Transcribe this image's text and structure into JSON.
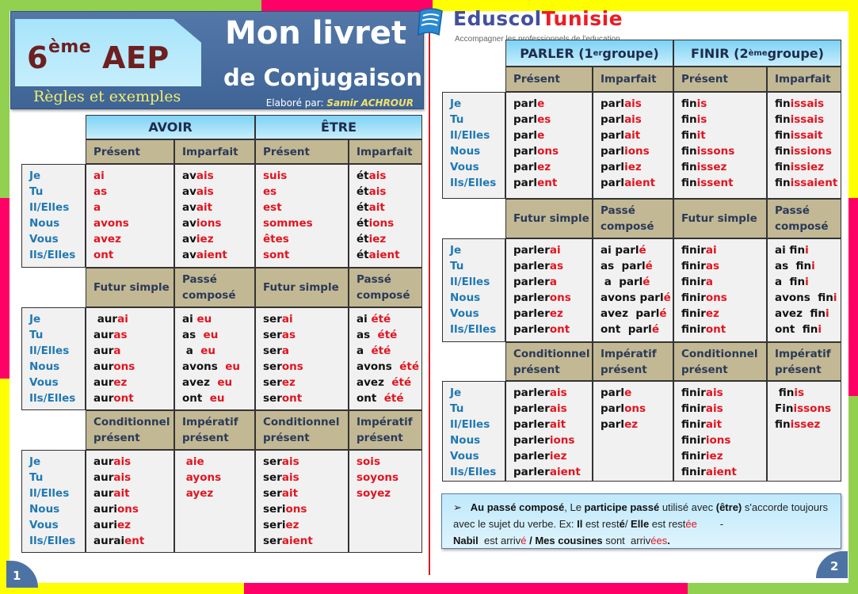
{
  "header": {
    "grade_num": "6",
    "grade_sup": "ème",
    "grade_label": "AEP",
    "subtitle": "Règles et exemples",
    "title_line1": "Mon livret",
    "title_line2": "de Conjugaison",
    "author_prefix": "Elaboré par: ",
    "author_name": "Samir ACHROUR"
  },
  "logo": {
    "name_part1": "Eduscol",
    "name_part2": "Tunisie",
    "tagline": "Accompagner les professionnels de l'education"
  },
  "colors": {
    "frame_green": "#92d050",
    "frame_pink": "#ff0066",
    "frame_yellow": "#ffff00",
    "banner_blue": "#4a6fa2",
    "verb_header_blue": "#8fd8f7",
    "tense_header_tan": "#c2b894",
    "ending_red": "#e2141f",
    "pronoun_blue": "#1f78b4"
  },
  "pronouns": [
    "Je",
    "Tu",
    "Il/Elles",
    "Nous",
    "Vous",
    "Ils/Elles"
  ],
  "page1": {
    "page_number": "1",
    "verbs": [
      "AVOIR",
      "ÊTRE"
    ],
    "blocks": [
      {
        "tenses": [
          "Présent",
          "Imparfait",
          "Présent",
          "Imparfait"
        ],
        "columns": [
          [
            [
              "",
              "ai"
            ],
            [
              "",
              "as"
            ],
            [
              "",
              "a"
            ],
            [
              "",
              "avons"
            ],
            [
              "",
              "avez"
            ],
            [
              "",
              "ont"
            ]
          ],
          [
            [
              "av",
              "ais"
            ],
            [
              "av",
              "ais"
            ],
            [
              "av",
              "ait"
            ],
            [
              "av",
              "ions"
            ],
            [
              "av",
              "iez"
            ],
            [
              "av",
              "aient"
            ]
          ],
          [
            [
              "",
              "suis"
            ],
            [
              "",
              "es"
            ],
            [
              "",
              "est"
            ],
            [
              "",
              "sommes"
            ],
            [
              "",
              "êtes"
            ],
            [
              "",
              "sont"
            ]
          ],
          [
            [
              "ét",
              "ais"
            ],
            [
              "ét",
              "ais"
            ],
            [
              "ét",
              "ait"
            ],
            [
              "ét",
              "ions"
            ],
            [
              "ét",
              "iez"
            ],
            [
              "ét",
              "aient"
            ]
          ]
        ]
      },
      {
        "tenses": [
          "Futur simple",
          "Passé composé",
          "Futur simple",
          "Passé composé"
        ],
        "columns": [
          [
            [
              " aur",
              "ai"
            ],
            [
              "aur",
              "as"
            ],
            [
              "aur",
              "a"
            ],
            [
              "aur",
              "ons"
            ],
            [
              "aur",
              "ez"
            ],
            [
              "aur",
              "ont"
            ]
          ],
          [
            [
              "ai ",
              "eu"
            ],
            [
              "as  ",
              "eu"
            ],
            [
              " a  ",
              "eu"
            ],
            [
              "avons  ",
              "eu"
            ],
            [
              "avez  ",
              "eu"
            ],
            [
              "ont  ",
              "eu"
            ]
          ],
          [
            [
              "ser",
              "ai"
            ],
            [
              "ser",
              "as"
            ],
            [
              "ser",
              "a"
            ],
            [
              "ser",
              "ons"
            ],
            [
              "ser",
              "ez"
            ],
            [
              "ser",
              "ont"
            ]
          ],
          [
            [
              "ai ",
              "été"
            ],
            [
              "as  ",
              "été"
            ],
            [
              "a  ",
              "été"
            ],
            [
              "avons  ",
              "été"
            ],
            [
              "avez  ",
              "été"
            ],
            [
              "ont  ",
              "été"
            ]
          ]
        ]
      },
      {
        "tenses": [
          "Conditionnel présent",
          "Impératif présent",
          "Conditionnel présent",
          "Impératif présent"
        ],
        "columns": [
          [
            [
              "aur",
              "ais"
            ],
            [
              "aur",
              "ais"
            ],
            [
              "aur",
              "ait"
            ],
            [
              "auri",
              "ons"
            ],
            [
              "auri",
              "ez"
            ],
            [
              "aurai",
              "ent"
            ]
          ],
          [
            [
              " ",
              "aie"
            ],
            [
              " ",
              "ayons"
            ],
            [
              " ",
              "ayez"
            ]
          ],
          [
            [
              "ser",
              "ais"
            ],
            [
              "ser",
              "ais"
            ],
            [
              "ser",
              "ait"
            ],
            [
              "seri",
              "ons"
            ],
            [
              "seri",
              "ez"
            ],
            [
              "ser",
              "aient"
            ]
          ],
          [
            [
              "",
              "sois"
            ],
            [
              "",
              "soyons"
            ],
            [
              "",
              "soyez"
            ]
          ]
        ]
      }
    ]
  },
  "page2": {
    "page_number": "2",
    "verbs": [
      "PARLER (1",
      "er",
      " groupe)",
      "FINIR (2",
      "ème",
      " groupe)"
    ],
    "blocks": [
      {
        "tenses": [
          "Présent",
          "Imparfait",
          "Présent",
          "Imparfait"
        ],
        "columns": [
          [
            [
              "parl",
              "e"
            ],
            [
              "parl",
              "es"
            ],
            [
              "parl",
              "e"
            ],
            [
              "parl",
              "ons"
            ],
            [
              "parl",
              "ez"
            ],
            [
              "parl",
              "ent"
            ]
          ],
          [
            [
              "parl",
              "ais"
            ],
            [
              "parl",
              "ais"
            ],
            [
              "parl",
              "ait"
            ],
            [
              "parl",
              "ions"
            ],
            [
              "parl",
              "iez"
            ],
            [
              "parl",
              "aient"
            ]
          ],
          [
            [
              "fin",
              "is"
            ],
            [
              "fin",
              "is"
            ],
            [
              "fin",
              "it"
            ],
            [
              "fin",
              "issons"
            ],
            [
              "fin",
              "issez"
            ],
            [
              "fin",
              "issent"
            ]
          ],
          [
            [
              "fin",
              "issais"
            ],
            [
              "fin",
              "issais"
            ],
            [
              "fin",
              "issait"
            ],
            [
              "fin",
              "issions"
            ],
            [
              "fin",
              "issiez"
            ],
            [
              "fin",
              "issaient"
            ]
          ]
        ]
      },
      {
        "tenses": [
          "Futur simple",
          "Passé composé",
          "Futur simple",
          "Passé composé"
        ],
        "columns": [
          [
            [
              "parler",
              "ai"
            ],
            [
              "parler",
              "as"
            ],
            [
              "parler",
              "a"
            ],
            [
              "parler",
              "ons"
            ],
            [
              "parler",
              "ez"
            ],
            [
              "parler",
              "ont"
            ]
          ],
          [
            [
              "ai parl",
              "é"
            ],
            [
              "as  parl",
              "é"
            ],
            [
              " a  parl",
              "é"
            ],
            [
              "avons parl",
              "é"
            ],
            [
              "avez  parl",
              "é"
            ],
            [
              "ont  parl",
              "é"
            ]
          ],
          [
            [
              "finir",
              "ai"
            ],
            [
              "finir",
              "as"
            ],
            [
              "finir",
              "a"
            ],
            [
              "finir",
              "ons"
            ],
            [
              "finir",
              "ez"
            ],
            [
              "finir",
              "ont"
            ]
          ],
          [
            [
              "ai fin",
              "i"
            ],
            [
              "as  fin",
              "i"
            ],
            [
              "a  fin",
              "i"
            ],
            [
              "avons  fin",
              "i"
            ],
            [
              "avez  fin",
              "i"
            ],
            [
              "ont  fin",
              "i"
            ]
          ]
        ]
      },
      {
        "tenses": [
          "Conditionnel présent",
          "Impératif présent",
          "Conditionnel présent",
          "Impératif présent"
        ],
        "columns": [
          [
            [
              "parler",
              "ais"
            ],
            [
              "parler",
              "ais"
            ],
            [
              "parler",
              "ait"
            ],
            [
              "parler",
              "ions"
            ],
            [
              "parler",
              "iez"
            ],
            [
              "parler",
              "aient"
            ]
          ],
          [
            [
              "parl",
              "e"
            ],
            [
              "parl",
              "ons"
            ],
            [
              "parl",
              "ez"
            ]
          ],
          [
            [
              "finir",
              "ais"
            ],
            [
              "finir",
              "ais"
            ],
            [
              "finir",
              "ait"
            ],
            [
              "finir",
              "ions"
            ],
            [
              "finir",
              "iez"
            ],
            [
              "finir",
              "aient"
            ]
          ],
          [
            [
              " fin",
              "is"
            ],
            [
              "Fin",
              "issons"
            ],
            [
              "fin",
              "issez"
            ]
          ]
        ]
      }
    ]
  },
  "note": {
    "bullet": "➢",
    "rule_bold": "Au passé composé",
    "rule_t1": ", Le ",
    "rule_bold2": "participe passé",
    "rule_t2": " utilisé avec ",
    "rule_bold3": "(être)",
    "rule_t3": " s'accorde toujours avec le sujet du verbe.  Ex:  ",
    "ex1_subject": "Il",
    "ex1_verb": " est rest",
    "ex1_end": "é",
    "sep1": "/ ",
    "ex2_subject": "Elle",
    "ex2_verb": " est rest",
    "ex2_end": "ée",
    "sep2": "        - ",
    "ex3_subject": "Nabil",
    "ex3_verb": "  est arriv",
    "ex3_end": "é",
    "sep3": " / ",
    "ex4_subject": "Mes cousines",
    "ex4_verb": " sont  arriv",
    "ex4_end": "ées",
    "ex4_dot": "."
  }
}
